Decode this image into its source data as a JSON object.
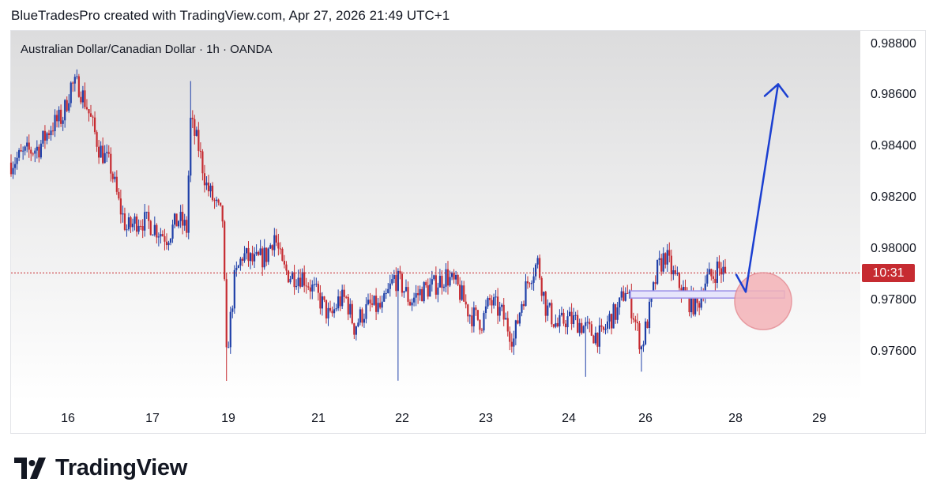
{
  "header": {
    "caption": "BlueTradesPro created with TradingView.com, Apr 27, 2026 21:49 UTC+1"
  },
  "brand": {
    "name": "TradingView",
    "logo_icon": "tradingview-logo-icon"
  },
  "colors": {
    "up_candle": "#1e3fa8",
    "down_candle": "#c62b31",
    "last_price_line": "#c62b31",
    "arrow": "#1b3fd1",
    "zone_fill": "#e6e4fb",
    "zone_border": "#9a8fe8",
    "circle_fill": "#f4b3b8",
    "circle_border": "#e58a92"
  },
  "chart_data": {
    "type": "candlestick",
    "title": "Australian Dollar/Canadian Dollar · 1h · OANDA",
    "y_axis": {
      "ticks": [
        "0.98800",
        "0.98600",
        "0.98400",
        "0.98200",
        "0.98000",
        "0.97800",
        "0.97600"
      ],
      "ylim": [
        0.9747,
        0.9883
      ]
    },
    "x_axis": {
      "ticks": [
        "16",
        "17",
        "19",
        "21",
        "22",
        "23",
        "24",
        "26",
        "28",
        "29"
      ]
    },
    "price_tag": "10:31",
    "last_price": 0.9791,
    "anchors": [
      [
        0,
        0.9834
      ],
      [
        8,
        0.9838
      ],
      [
        14,
        0.984
      ],
      [
        20,
        0.9848
      ],
      [
        26,
        0.9852
      ],
      [
        30,
        0.9864
      ],
      [
        34,
        0.9864
      ],
      [
        38,
        0.9856
      ],
      [
        44,
        0.984
      ],
      [
        50,
        0.9832
      ],
      [
        54,
        0.9818
      ],
      [
        58,
        0.9808
      ],
      [
        64,
        0.9812
      ],
      [
        70,
        0.981
      ],
      [
        78,
        0.9805
      ],
      [
        84,
        0.9812
      ],
      [
        88,
        0.9808
      ],
      [
        90,
        0.985
      ],
      [
        94,
        0.984
      ],
      [
        98,
        0.9825
      ],
      [
        104,
        0.9815
      ],
      [
        106,
        0.9812
      ],
      [
        108,
        0.9758
      ],
      [
        112,
        0.9788
      ],
      [
        116,
        0.9798
      ],
      [
        122,
        0.9795
      ],
      [
        128,
        0.9798
      ],
      [
        132,
        0.9806
      ],
      [
        136,
        0.9793
      ],
      [
        140,
        0.979
      ],
      [
        146,
        0.979
      ],
      [
        150,
        0.9786
      ],
      [
        156,
        0.9779
      ],
      [
        160,
        0.9773
      ],
      [
        164,
        0.978
      ],
      [
        168,
        0.9781
      ],
      [
        172,
        0.977
      ],
      [
        176,
        0.9775
      ],
      [
        180,
        0.9778
      ],
      [
        186,
        0.9777
      ],
      [
        192,
        0.9789
      ],
      [
        196,
        0.9786
      ],
      [
        200,
        0.978
      ],
      [
        206,
        0.9784
      ],
      [
        212,
        0.9786
      ],
      [
        218,
        0.979
      ],
      [
        224,
        0.9785
      ],
      [
        230,
        0.9775
      ],
      [
        236,
        0.9772
      ],
      [
        240,
        0.978
      ],
      [
        246,
        0.9775
      ],
      [
        252,
        0.9765
      ],
      [
        256,
        0.978
      ],
      [
        260,
        0.979
      ],
      [
        264,
        0.9795
      ],
      [
        268,
        0.9778
      ],
      [
        274,
        0.977
      ],
      [
        278,
        0.9773
      ],
      [
        284,
        0.9772
      ],
      [
        290,
        0.9768
      ],
      [
        296,
        0.9766
      ],
      [
        300,
        0.9773
      ],
      [
        304,
        0.9776
      ],
      [
        308,
        0.9785
      ],
      [
        312,
        0.9775
      ],
      [
        316,
        0.9762
      ],
      [
        320,
        0.9776
      ],
      [
        324,
        0.9792
      ],
      [
        328,
        0.9798
      ],
      [
        332,
        0.979
      ],
      [
        336,
        0.9785
      ],
      [
        340,
        0.978
      ],
      [
        344,
        0.9778
      ],
      [
        348,
        0.9788
      ],
      [
        352,
        0.979
      ],
      [
        354,
        0.9793
      ],
      [
        358,
        0.9791
      ]
    ],
    "annotations": {
      "zone": {
        "y_top": 0.9784,
        "y_bottom": 0.97812
      },
      "circle": {
        "center_y": 0.978
      },
      "arrow": {
        "from_y": 0.97903,
        "pivot_y": 0.97836,
        "to_y": 0.98646
      }
    }
  }
}
